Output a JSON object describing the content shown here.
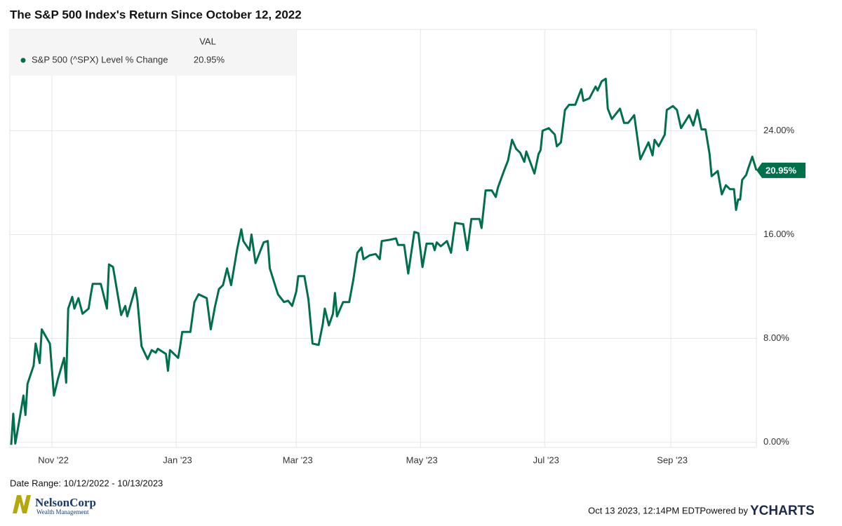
{
  "chart_data": {
    "type": "line",
    "title": "The S&P 500 Index's Return Since October 12, 2022",
    "legend_header": "VAL",
    "date_range": "Date Range: 10/12/2022 - 10/13/2023",
    "timestamp": "Oct 13 2023, 12:14PM EDT.",
    "powered_by": "Powered by",
    "brand": "YCHARTS",
    "logo_name": "NelsonCorp",
    "logo_sub": "Wealth Management",
    "grid": true,
    "xlim": [
      "2022-10-12",
      "2023-10-13"
    ],
    "xticks": [
      {
        "value": "2022-11-01",
        "label": "Nov '22"
      },
      {
        "value": "2023-01-01",
        "label": "Jan '23"
      },
      {
        "value": "2023-03-01",
        "label": "Mar '23"
      },
      {
        "value": "2023-05-01",
        "label": "May '23"
      },
      {
        "value": "2023-07-01",
        "label": "Jul '23"
      },
      {
        "value": "2023-09-01",
        "label": "Sep '23"
      }
    ],
    "ylim": [
      -0.4,
      31.8
    ],
    "yticks": [
      {
        "value": 0,
        "label": "0.00%"
      },
      {
        "value": 8,
        "label": "8.00%"
      },
      {
        "value": 16,
        "label": "16.00%"
      },
      {
        "value": 24,
        "label": "24.00%"
      }
    ],
    "x": [
      "2022-10-12",
      "2022-10-13",
      "2022-10-14",
      "2022-10-16",
      "2022-10-18",
      "2022-10-19",
      "2022-10-20",
      "2022-10-23",
      "2022-10-24",
      "2022-10-26",
      "2022-10-27",
      "2022-10-31",
      "2022-11-02",
      "2022-11-04",
      "2022-11-07",
      "2022-11-08",
      "2022-11-09",
      "2022-11-11",
      "2022-11-12",
      "2022-11-14",
      "2022-11-16",
      "2022-11-19",
      "2022-11-20",
      "2022-11-21",
      "2022-11-25",
      "2022-11-28",
      "2022-11-29",
      "2022-12-01",
      "2022-12-05",
      "2022-12-07",
      "2022-12-08",
      "2022-12-12",
      "2022-12-13",
      "2022-12-15",
      "2022-12-18",
      "2022-12-20",
      "2022-12-22",
      "2022-12-23",
      "2022-12-27",
      "2022-12-28",
      "2022-12-29",
      "2023-01-02",
      "2023-01-03",
      "2023-01-04",
      "2023-01-08",
      "2023-01-10",
      "2023-01-12",
      "2023-01-16",
      "2023-01-18",
      "2023-01-20",
      "2023-01-22",
      "2023-01-24",
      "2023-01-26",
      "2023-01-28",
      "2023-01-31",
      "2023-02-02",
      "2023-02-03",
      "2023-02-06",
      "2023-02-07",
      "2023-02-09",
      "2023-02-13",
      "2023-02-15",
      "2023-02-16",
      "2023-02-20",
      "2023-02-23",
      "2023-02-25",
      "2023-02-27",
      "2023-03-01",
      "2023-03-02",
      "2023-03-05",
      "2023-03-07",
      "2023-03-09",
      "2023-03-12",
      "2023-03-14",
      "2023-03-15",
      "2023-03-17",
      "2023-03-19",
      "2023-03-20",
      "2023-03-21",
      "2023-03-24",
      "2023-03-27",
      "2023-03-29",
      "2023-03-31",
      "2023-04-02",
      "2023-04-03",
      "2023-04-06",
      "2023-04-09",
      "2023-04-11",
      "2023-04-12",
      "2023-04-16",
      "2023-04-19",
      "2023-04-20",
      "2023-04-23",
      "2023-04-25",
      "2023-04-28",
      "2023-04-30",
      "2023-05-02",
      "2023-05-04",
      "2023-05-07",
      "2023-05-08",
      "2023-05-09",
      "2023-05-11",
      "2023-05-14",
      "2023-05-16",
      "2023-05-18",
      "2023-05-22",
      "2023-05-24",
      "2023-05-26",
      "2023-05-30",
      "2023-05-31",
      "2023-06-02",
      "2023-06-05",
      "2023-06-07",
      "2023-06-08",
      "2023-06-11",
      "2023-06-13",
      "2023-06-15",
      "2023-06-17",
      "2023-06-19",
      "2023-06-21",
      "2023-06-22",
      "2023-06-26",
      "2023-06-28",
      "2023-06-29",
      "2023-06-30",
      "2023-07-03",
      "2023-07-06",
      "2023-07-07",
      "2023-07-09",
      "2023-07-11",
      "2023-07-13",
      "2023-07-16",
      "2023-07-18",
      "2023-07-19",
      "2023-07-20",
      "2023-07-23",
      "2023-07-26",
      "2023-07-27",
      "2023-07-29",
      "2023-07-31",
      "2023-08-01",
      "2023-08-03",
      "2023-08-07",
      "2023-08-09",
      "2023-08-11",
      "2023-08-14",
      "2023-08-17",
      "2023-08-21",
      "2023-08-23",
      "2023-08-24",
      "2023-08-26",
      "2023-08-29",
      "2023-08-30",
      "2023-09-02",
      "2023-09-04",
      "2023-09-06",
      "2023-09-10",
      "2023-09-12",
      "2023-09-14",
      "2023-09-16",
      "2023-09-18",
      "2023-09-20",
      "2023-09-21",
      "2023-09-24",
      "2023-09-26",
      "2023-09-28",
      "2023-09-30",
      "2023-10-02",
      "2023-10-03",
      "2023-10-04",
      "2023-10-05",
      "2023-10-06",
      "2023-10-08",
      "2023-10-09",
      "2023-10-11",
      "2023-10-13"
    ],
    "series": [
      {
        "name": "S&P 500 (^SPX) Level % Change",
        "color": "#00704a",
        "last_value_label": "20.95%",
        "values": [
          -0.2,
          2.2,
          -0.1,
          1.7,
          3.6,
          2.1,
          4.5,
          5.9,
          7.6,
          6.1,
          8.7,
          7.6,
          3.6,
          4.9,
          6.5,
          4.6,
          10.3,
          11.2,
          10.3,
          11.1,
          9.9,
          10.3,
          11.3,
          12.2,
          12.2,
          10.3,
          13.7,
          13.5,
          9.8,
          10.5,
          9.7,
          11.9,
          10.9,
          7.4,
          6.4,
          7.1,
          6.9,
          7.2,
          6.8,
          5.5,
          7.1,
          6.5,
          7.4,
          8.5,
          8.5,
          10.8,
          11.4,
          11.1,
          8.7,
          10.4,
          11.8,
          12.1,
          13.4,
          12.1,
          14.9,
          16.4,
          15.5,
          14.8,
          16.0,
          13.8,
          15.4,
          15.5,
          13.4,
          11.4,
          10.8,
          10.9,
          10.5,
          11.6,
          12.8,
          12.8,
          11.0,
          7.6,
          7.5,
          9.1,
          10.3,
          9.0,
          9.9,
          11.5,
          9.7,
          10.8,
          10.8,
          12.5,
          14.6,
          15.0,
          14.1,
          14.4,
          14.5,
          14.1,
          15.5,
          15.6,
          15.7,
          15.2,
          15.2,
          13.0,
          16.2,
          16.1,
          13.5,
          15.3,
          15.3,
          14.8,
          15.4,
          15.1,
          15.5,
          14.6,
          16.9,
          16.8,
          14.8,
          17.2,
          17.2,
          16.5,
          19.4,
          19.4,
          18.9,
          19.6,
          20.9,
          21.7,
          23.3,
          22.6,
          22.3,
          21.6,
          22.4,
          20.7,
          22.2,
          22.5,
          24.0,
          24.2,
          23.7,
          22.8,
          23.1,
          25.6,
          26.0,
          26.0,
          26.8,
          27.2,
          26.3,
          26.5,
          27.4,
          27.1,
          27.8,
          28.0,
          25.7,
          24.9,
          25.7,
          24.6,
          24.6,
          25.2,
          21.8,
          23.1,
          22.1,
          23.3,
          22.8,
          23.7,
          25.6,
          25.9,
          25.6,
          24.2,
          25.2,
          24.4,
          25.6,
          24.1,
          24.1,
          22.2,
          20.5,
          20.9,
          19.1,
          19.8,
          19.5,
          19.5,
          17.9,
          18.7,
          18.7,
          20.2,
          20.6,
          21.1,
          22.0,
          20.95
        ]
      }
    ]
  }
}
